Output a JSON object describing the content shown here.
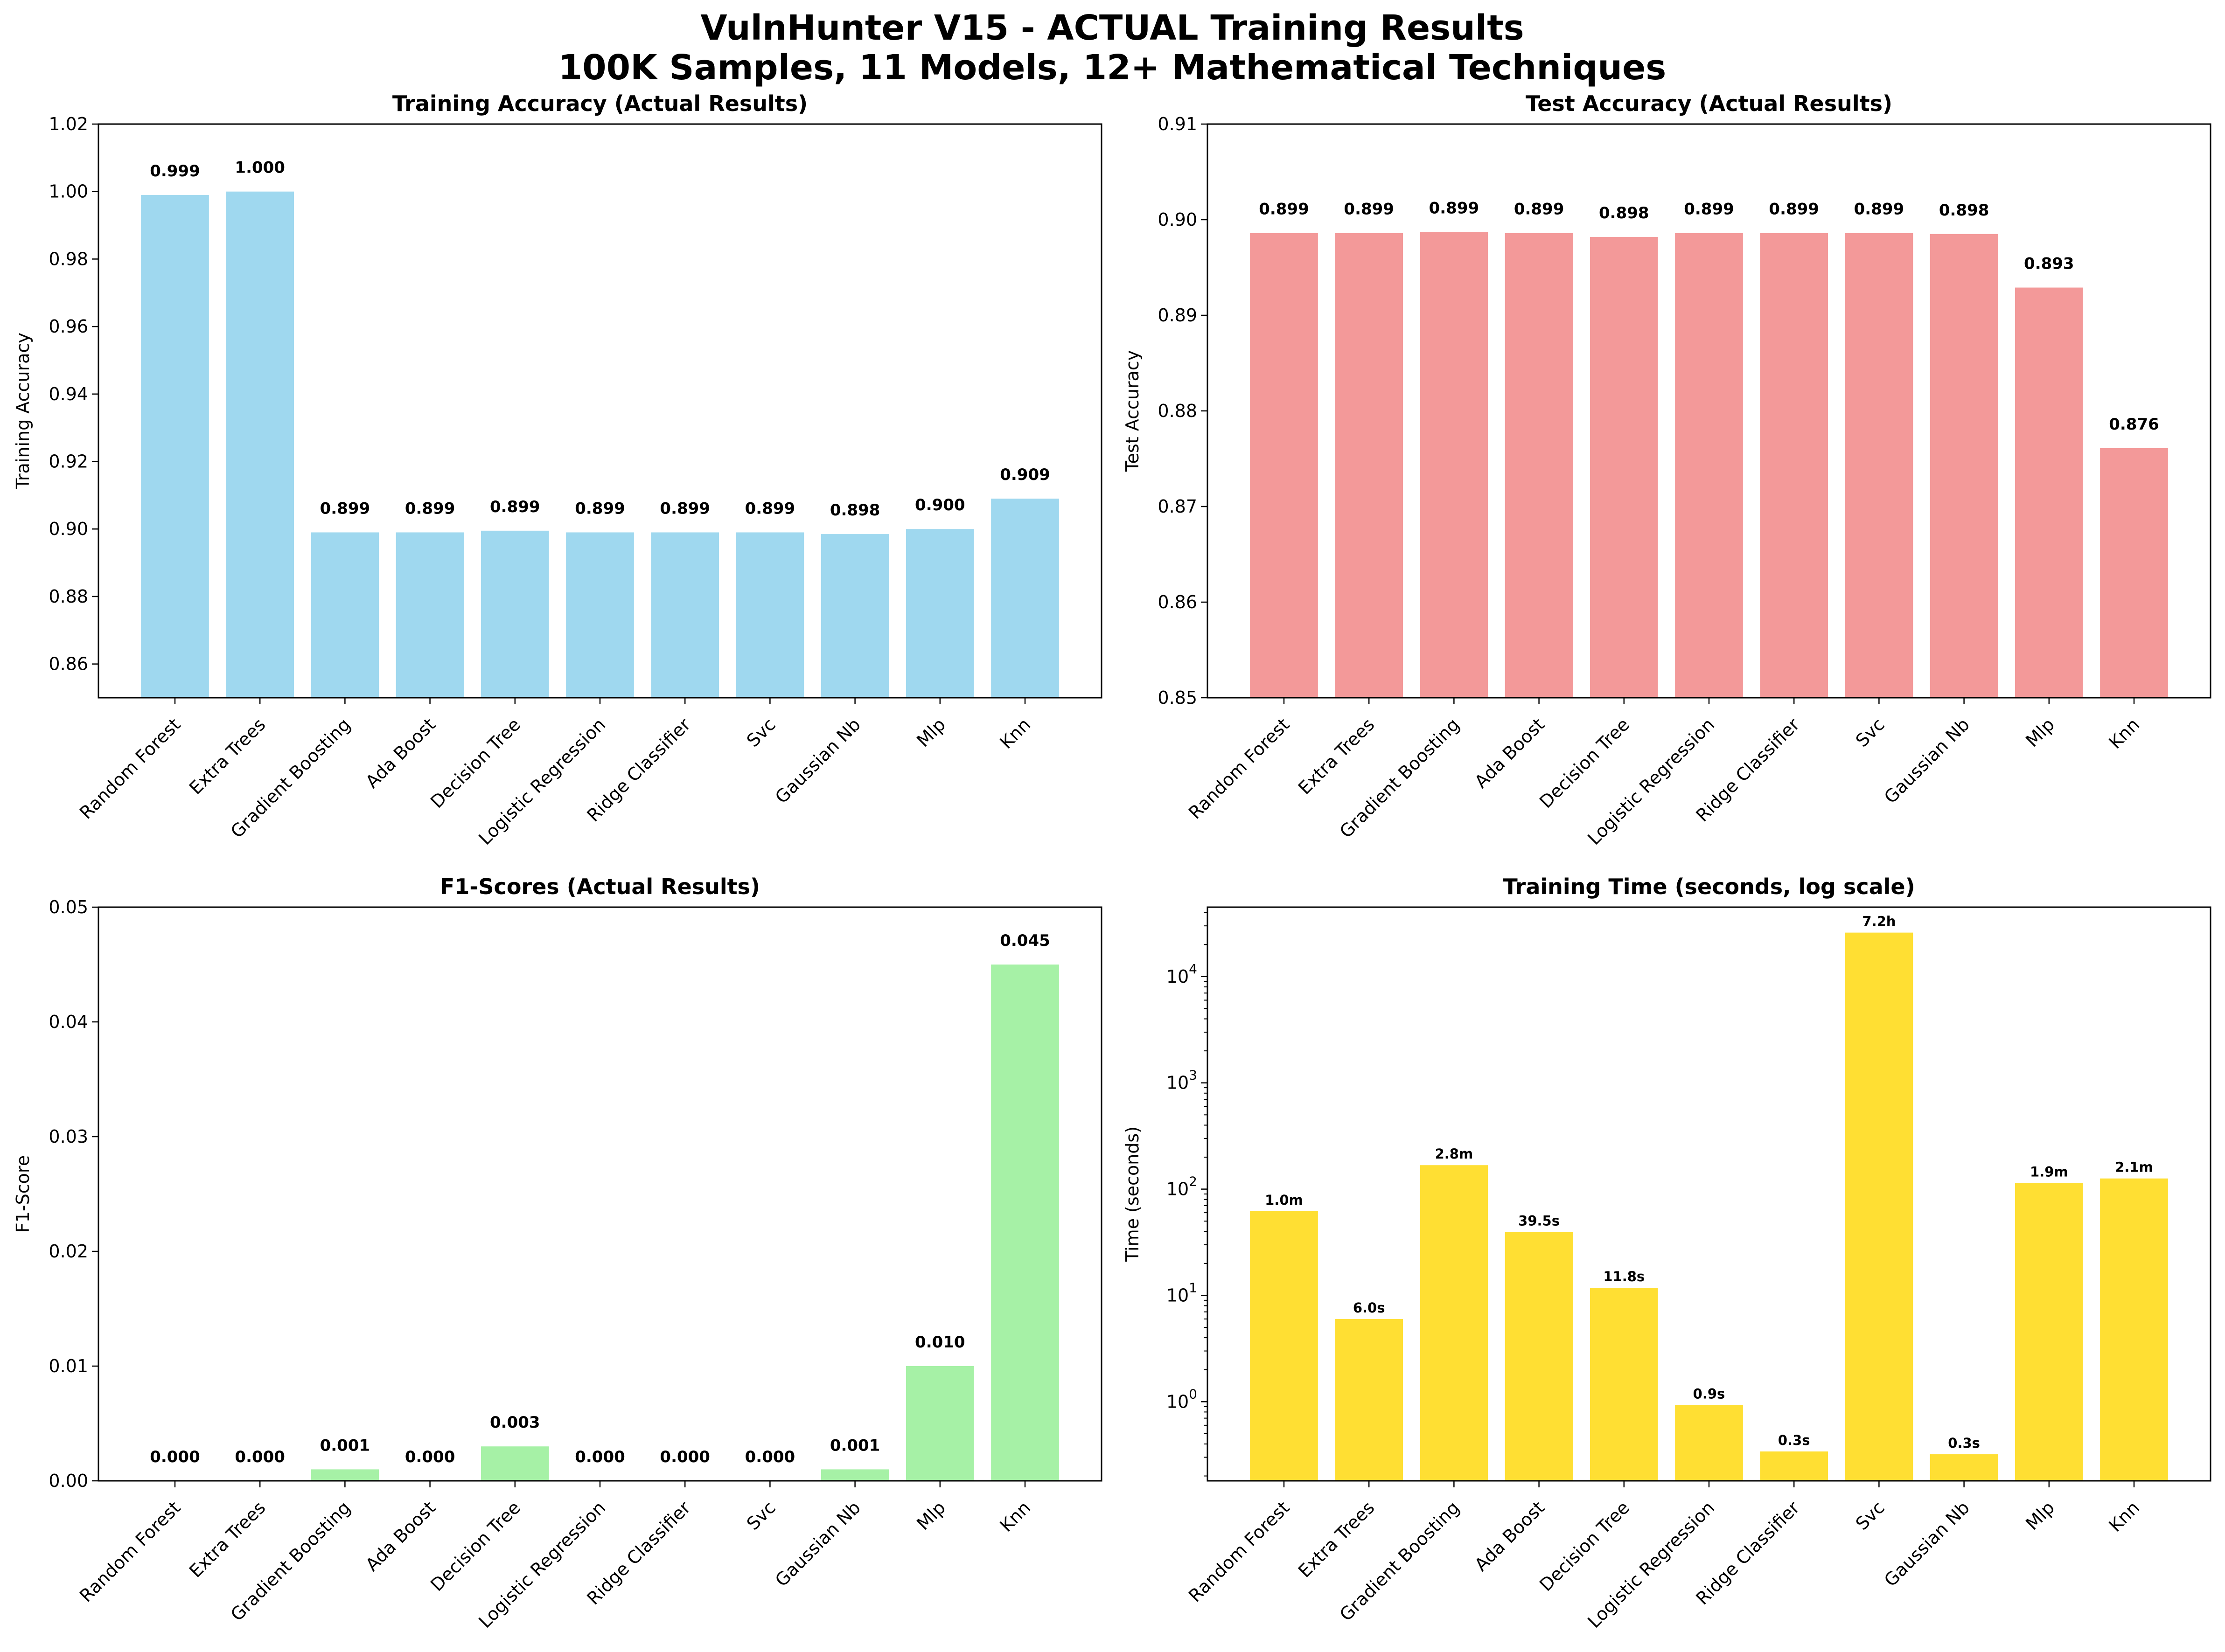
{
  "figure": {
    "title_line1": "VulnHunter V15 - ACTUAL Training Results",
    "title_line2": "100K Samples, 11 Models, 12+ Mathematical Techniques"
  },
  "chart_data": [
    {
      "type": "bar",
      "title": "Training Accuracy (Actual Results)",
      "ylabel": "Training Accuracy",
      "xlabel": "",
      "ylim": [
        0.85,
        1.02
      ],
      "yscale": "linear",
      "yticks": [
        0.86,
        0.88,
        0.9,
        0.92,
        0.94,
        0.96,
        0.98,
        1.0,
        1.02
      ],
      "ytick_labels": [
        "0.86",
        "0.88",
        "0.90",
        "0.92",
        "0.94",
        "0.96",
        "0.98",
        "1.00",
        "1.02"
      ],
      "color": "#87ceeb",
      "categories": [
        "Random Forest",
        "Extra Trees",
        "Gradient Boosting",
        "Ada Boost",
        "Decision Tree",
        "Logistic Regression",
        "Ridge Classifier",
        "Svc",
        "Gaussian Nb",
        "Mlp",
        "Knn"
      ],
      "values": [
        0.999,
        1.0,
        0.899,
        0.899,
        0.8995,
        0.899,
        0.899,
        0.899,
        0.8985,
        0.9,
        0.909
      ],
      "labels": [
        "0.999",
        "1.000",
        "0.899",
        "0.899",
        "0.899",
        "0.899",
        "0.899",
        "0.899",
        "0.898",
        "0.900",
        "0.909"
      ],
      "grid": false,
      "legend": "none"
    },
    {
      "type": "bar",
      "title": "Test Accuracy (Actual Results)",
      "ylabel": "Test Accuracy",
      "xlabel": "",
      "ylim": [
        0.85,
        0.91
      ],
      "yscale": "linear",
      "yticks": [
        0.85,
        0.86,
        0.87,
        0.88,
        0.89,
        0.9,
        0.91
      ],
      "ytick_labels": [
        "0.85",
        "0.86",
        "0.87",
        "0.88",
        "0.89",
        "0.90",
        "0.91"
      ],
      "color": "#f08080",
      "categories": [
        "Random Forest",
        "Extra Trees",
        "Gradient Boosting",
        "Ada Boost",
        "Decision Tree",
        "Logistic Regression",
        "Ridge Classifier",
        "Svc",
        "Gaussian Nb",
        "Mlp",
        "Knn"
      ],
      "values": [
        0.8986,
        0.8986,
        0.8987,
        0.8986,
        0.8982,
        0.8986,
        0.8986,
        0.8986,
        0.8985,
        0.8929,
        0.8761
      ],
      "labels": [
        "0.899",
        "0.899",
        "0.899",
        "0.899",
        "0.898",
        "0.899",
        "0.899",
        "0.899",
        "0.898",
        "0.893",
        "0.876"
      ],
      "grid": false,
      "legend": "none"
    },
    {
      "type": "bar",
      "title": "F1-Scores (Actual Results)",
      "ylabel": "F1-Score",
      "xlabel": "",
      "ylim": [
        0.0,
        0.05
      ],
      "yscale": "linear",
      "yticks": [
        0.0,
        0.01,
        0.02,
        0.03,
        0.04,
        0.05
      ],
      "ytick_labels": [
        "0.00",
        "0.01",
        "0.02",
        "0.03",
        "0.04",
        "0.05"
      ],
      "color": "#90ee90",
      "categories": [
        "Random Forest",
        "Extra Trees",
        "Gradient Boosting",
        "Ada Boost",
        "Decision Tree",
        "Logistic Regression",
        "Ridge Classifier",
        "Svc",
        "Gaussian Nb",
        "Mlp",
        "Knn"
      ],
      "values": [
        0.0,
        0.0,
        0.001,
        0.0,
        0.003,
        0.0,
        0.0,
        0.0,
        0.001,
        0.01,
        0.045
      ],
      "labels": [
        "0.000",
        "0.000",
        "0.001",
        "0.000",
        "0.003",
        "0.000",
        "0.000",
        "0.000",
        "0.001",
        "0.010",
        "0.045"
      ],
      "grid": false,
      "legend": "none"
    },
    {
      "type": "bar",
      "title": "Training Time (seconds, log scale)",
      "ylabel": "Time (seconds)",
      "xlabel": "",
      "ylim": [
        0.18,
        45000
      ],
      "yscale": "log",
      "yticks": [
        1,
        10,
        100,
        1000,
        10000
      ],
      "ytick_labels": [
        "10^0",
        "10^1",
        "10^2",
        "10^3",
        "10^4"
      ],
      "color": "#ffd700",
      "categories": [
        "Random Forest",
        "Extra Trees",
        "Gradient Boosting",
        "Ada Boost",
        "Decision Tree",
        "Logistic Regression",
        "Ridge Classifier",
        "Svc",
        "Gaussian Nb",
        "Mlp",
        "Knn"
      ],
      "values": [
        62,
        6.0,
        168,
        39.5,
        11.8,
        0.93,
        0.34,
        25920,
        0.32,
        114,
        126
      ],
      "labels": [
        "1.0m",
        "6.0s",
        "2.8m",
        "39.5s",
        "11.8s",
        "0.9s",
        "0.3s",
        "7.2h",
        "0.3s",
        "1.9m",
        "2.1m"
      ],
      "grid": false,
      "legend": "none"
    }
  ]
}
